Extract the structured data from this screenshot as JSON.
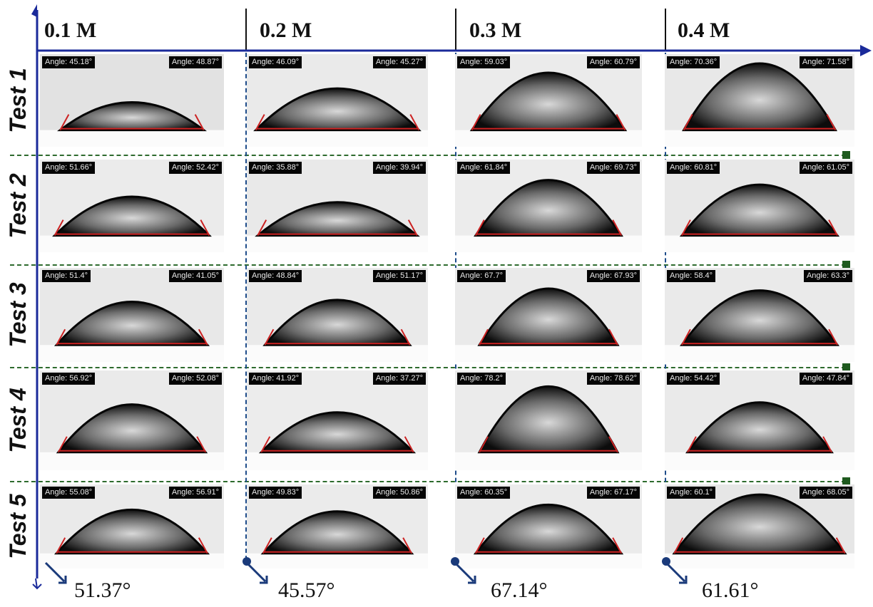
{
  "columns": [
    "0.1 M",
    "0.2 M",
    "0.3 M",
    "0.4 M"
  ],
  "rows": [
    "Test 1",
    "Test 2",
    "Test 3",
    "Test 4",
    "Test 5"
  ],
  "averages": [
    "51.37°",
    "45.57°",
    "67.14°",
    "61.61°"
  ],
  "angles": [
    [
      "Angle: 45.18°",
      "Angle: 48.87°",
      "Angle: 46.09°",
      "Angle: 45.27°",
      "Angle: 59.03°",
      "Angle: 60.79°",
      "Angle: 70.36°",
      "Angle: 71.58°"
    ],
    [
      "Angle: 51.66°",
      "Angle: 52.42°",
      "Angle: 35.88°",
      "Angle: 39.94°",
      "Angle: 61.84°",
      "Angle: 69.73°",
      "Angle: 60.81°",
      "Angle: 61.05°"
    ],
    [
      "Angle: 51.4°",
      "Angle: 41.05°",
      "Angle: 48.84°",
      "Angle: 51.17°",
      "Angle: 67.7°",
      "Angle: 67.93°",
      "Angle: 58.4°",
      "Angle: 63.3°"
    ],
    [
      "Angle: 56.92°",
      "Angle: 52.08°",
      "Angle: 41.92°",
      "Angle: 37.27°",
      "Angle: 78.2°",
      "Angle: 78.62°",
      "Angle: 54.42°",
      "Angle: 47.84°"
    ],
    [
      "Angle: 55.08°",
      "Angle: 56.91°",
      "Angle: 49.83°",
      "Angle: 50.86°",
      "Angle: 60.35°",
      "Angle: 67.17°",
      "Angle: 60.1°",
      "Angle: 68.05°"
    ]
  ],
  "colors": {
    "axis": "#1a2a9a",
    "row_divider": "#2e6b2e",
    "column_divider": "#1e4c8a",
    "fit_line": "#cc2222",
    "angle_tag": "#050505"
  }
}
